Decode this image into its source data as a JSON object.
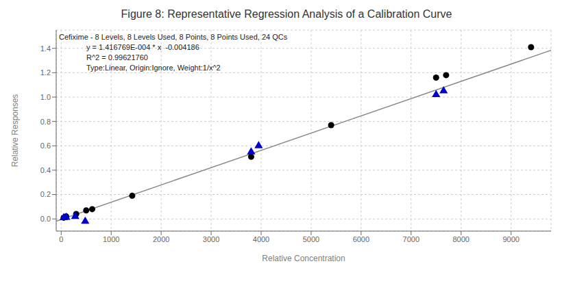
{
  "chart_data": {
    "type": "scatter",
    "title": "Figure 8: Representative Regression Analysis of a Calibration Curve",
    "x_label": "Relative Concentration",
    "y_label": "Relative Responses",
    "annotations": [
      "Cefixime - 8 Levels, 8 Levels Used, 8 Points, 8 Points Used, 24 QCs",
      "y = 1.416769E-004 * x  -0.004186",
      "R^2 = 0.99621760",
      "Type:Linear, Origin:Ignore, Weight:1/x^2"
    ],
    "xlim": [
      -100,
      9800
    ],
    "ylim": [
      -0.1,
      1.55
    ],
    "xticks": [
      0,
      1000,
      2000,
      3000,
      4000,
      5000,
      6000,
      7000,
      8000,
      9000
    ],
    "yticks": [
      {
        "value": 0,
        "label": "0.0"
      },
      0.2,
      0.4,
      0.6,
      0.8,
      {
        "value": 1,
        "label": "1.0"
      },
      1.2,
      1.4
    ],
    "grid": true,
    "series": [
      {
        "type": "line",
        "color": "#888888",
        "x": [
          -100,
          9900
        ],
        "values": [
          -0.01835369,
          1.39841531
        ]
      },
      {
        "type": "scatter",
        "marker": "circle",
        "color": "#000000",
        "x": [
          50,
          100,
          300,
          500,
          620,
          1420,
          3800,
          5400,
          7500,
          7700,
          9400
        ],
        "values": [
          0.01,
          0.02,
          0.04,
          0.07,
          0.08,
          0.19,
          0.51,
          0.77,
          1.16,
          1.18,
          1.41
        ]
      },
      {
        "type": "scatter",
        "marker": "triangle",
        "color": "#0000CC",
        "x": [
          50,
          100,
          280,
          480,
          3800,
          3950,
          7500,
          7650
        ],
        "values": [
          0.01,
          0.012,
          0.02,
          -0.02,
          0.55,
          0.6,
          1.02,
          1.05
        ]
      }
    ]
  }
}
